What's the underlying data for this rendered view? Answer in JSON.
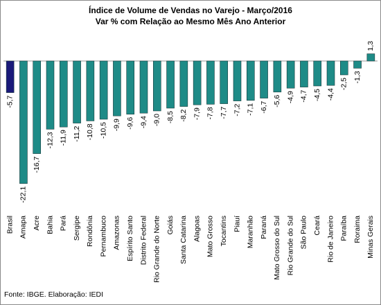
{
  "chart_data": {
    "type": "bar",
    "title": "Índice de Volume de Vendas no Varejo - Março/2016",
    "subtitle": "Var % com Relação ao Mesmo Mês Ano Anterior",
    "categories": [
      "Brasil",
      "Amapa",
      "Acre",
      "Bahia",
      "Pará",
      "Sergipe",
      "Rondônia",
      "Pernambuco",
      "Amazonas",
      "Espírito Santo",
      "Distrito Federal",
      "Rio Grande do Norte",
      "Goiás",
      "Santa Catarina",
      "Alagoas",
      "Mato Grosso",
      "Tocantins",
      "Piauí",
      "Maranhão",
      "Paraná",
      "Mato Grosso do Sul",
      "Rio Grande do Sul",
      "São Paulo",
      "Ceará",
      "Rio de Janeiro",
      "Paraíba",
      "Roraima",
      "Minas Gerais"
    ],
    "values": [
      -5.7,
      -22.1,
      -16.7,
      -12.3,
      -11.9,
      -11.2,
      -10.8,
      -10.5,
      -9.9,
      -9.6,
      -9.4,
      -9.0,
      -8.5,
      -8.2,
      -7.9,
      -7.8,
      -7.7,
      -7.2,
      -7.1,
      -6.7,
      -5.6,
      -4.9,
      -4.7,
      -4.5,
      -4.4,
      -2.5,
      -1.3,
      1.3
    ],
    "value_labels": [
      "-5,7",
      "-22,1",
      "-16,7",
      "-12,3",
      "-11,9",
      "-11,2",
      "-10,8",
      "-10,5",
      "-9,9",
      "-9,6",
      "-9,4",
      "-9,0",
      "-8,5",
      "-8,2",
      "-7,9",
      "-7,8",
      "-7,7",
      "-7,2",
      "-7,1",
      "-6,7",
      "-5,6",
      "-4,9",
      "-4,7",
      "-4,5",
      "-4,4",
      "-2,5",
      "-1,3",
      "1,3"
    ],
    "colors": [
      "#1a1a7a",
      "#1e8b87",
      "#1e8b87",
      "#1e8b87",
      "#1e8b87",
      "#1e8b87",
      "#1e8b87",
      "#1e8b87",
      "#1e8b87",
      "#1e8b87",
      "#1e8b87",
      "#1e8b87",
      "#1e8b87",
      "#1e8b87",
      "#1e8b87",
      "#1e8b87",
      "#1e8b87",
      "#1e8b87",
      "#1e8b87",
      "#1e8b87",
      "#1e8b87",
      "#1e8b87",
      "#1e8b87",
      "#1e8b87",
      "#1e8b87",
      "#1e8b87",
      "#1e8b87",
      "#1e8b87"
    ],
    "source": "Fonte: IBGE. Elaboração: IEDI"
  }
}
